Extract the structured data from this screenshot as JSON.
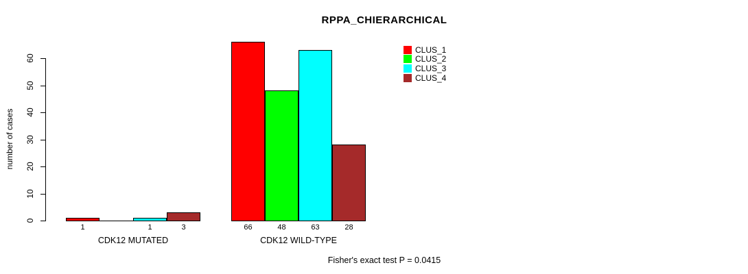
{
  "title": "RPPA_CHIERARCHICAL",
  "y_axis": {
    "label": "number of cases",
    "ticks": [
      0,
      10,
      20,
      30,
      40,
      50,
      60
    ]
  },
  "footer": "Fisher's exact test P = 0.0415",
  "legend": {
    "items": [
      {
        "label": "CLUS_1",
        "color": "#ff0000"
      },
      {
        "label": "CLUS_2",
        "color": "#00ff00"
      },
      {
        "label": "CLUS_3",
        "color": "#00ffff"
      },
      {
        "label": "CLUS_4",
        "color": "#a52a2a"
      }
    ]
  },
  "chart_data": {
    "type": "bar",
    "title": "RPPA_CHIERARCHICAL",
    "xlabel": "",
    "ylabel": "number of cases",
    "categories": [
      "CDK12 MUTATED",
      "CDK12 WILD-TYPE"
    ],
    "series": [
      {
        "name": "CLUS_1",
        "color": "#ff0000",
        "values": [
          1,
          66
        ]
      },
      {
        "name": "CLUS_2",
        "color": "#00ff00",
        "values": [
          0,
          48
        ]
      },
      {
        "name": "CLUS_3",
        "color": "#00ffff",
        "values": [
          1,
          63
        ]
      },
      {
        "name": "CLUS_4",
        "color": "#a52a2a",
        "values": [
          3,
          28
        ]
      }
    ],
    "bar_value_labels": [
      [
        "1",
        "",
        "1",
        "3"
      ],
      [
        "66",
        "48",
        "63",
        "28"
      ]
    ],
    "yticks": [
      0,
      10,
      20,
      30,
      40,
      50,
      60
    ],
    "ylim": [
      0,
      66
    ],
    "grid": false,
    "legend_position": "top-right",
    "annotation": "Fisher's exact test P = 0.0415"
  }
}
